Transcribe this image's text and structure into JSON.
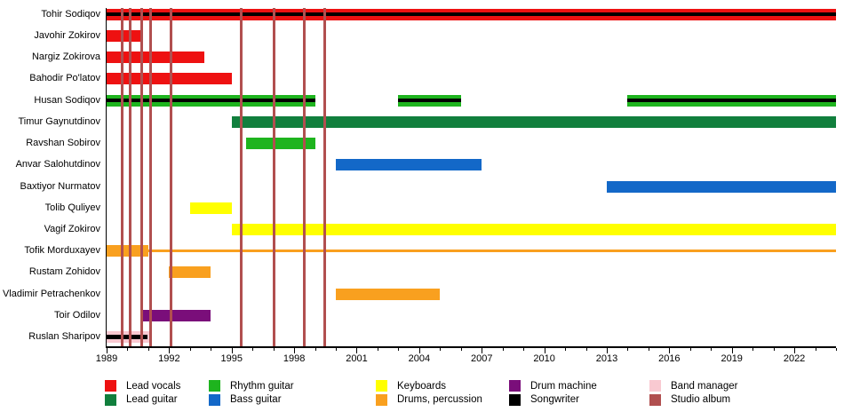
{
  "chart_data": {
    "type": "bar",
    "subtype": "band-members-timeline",
    "title": "",
    "xlabel": "",
    "ylabel": "",
    "axis": {
      "min": 1989,
      "max": 2024,
      "minor_tick_step": 1,
      "major_tick_step": 3,
      "major_tick_labels": [
        "1989",
        "1992",
        "1995",
        "1998",
        "2001",
        "2004",
        "2007",
        "2010",
        "2013",
        "2016",
        "2019",
        "2022"
      ],
      "grid": false
    },
    "colors": {
      "lead_vocals": "#ee1111",
      "lead_guitar": "#117f3d",
      "rhythm_guitar": "#1eb41e",
      "bass_guitar": "#1368c8",
      "keyboards": "#ffff00",
      "drums_percussion": "#f9a01f",
      "drum_machine": "#7a0e7a",
      "songwriter": "#000000",
      "band_manager": "#f9c9d1",
      "studio_album": "#b14f4f",
      "axis": "#000000"
    },
    "members": [
      {
        "name": "Tohir Sodiqov",
        "segments": [
          {
            "role": "lead_vocals",
            "start": 1989,
            "end": 2024,
            "songwriter_overlay": true
          }
        ]
      },
      {
        "name": "Javohir Zokirov",
        "segments": [
          {
            "role": "lead_vocals",
            "start": 1989,
            "end": 1990.7
          }
        ]
      },
      {
        "name": "Nargiz Zokirova",
        "segments": [
          {
            "role": "lead_vocals",
            "start": 1989,
            "end": 1993.7
          }
        ]
      },
      {
        "name": "Bahodir Po'latov",
        "segments": [
          {
            "role": "lead_vocals",
            "start": 1989,
            "end": 1995
          }
        ]
      },
      {
        "name": "Husan Sodiqov",
        "segments": [
          {
            "role": "rhythm_guitar",
            "start": 1989,
            "end": 1999,
            "songwriter_overlay": true
          },
          {
            "role": "rhythm_guitar",
            "start": 2003,
            "end": 2006,
            "songwriter_overlay": true
          },
          {
            "role": "rhythm_guitar",
            "start": 2014,
            "end": 2024,
            "songwriter_overlay": true
          }
        ]
      },
      {
        "name": "Timur Gaynutdinov",
        "segments": [
          {
            "role": "lead_guitar",
            "start": 1995,
            "end": 2024
          }
        ]
      },
      {
        "name": "Ravshan Sobirov",
        "segments": [
          {
            "role": "rhythm_guitar",
            "start": 1995.7,
            "end": 1999
          }
        ]
      },
      {
        "name": "Anvar Salohutdinov",
        "segments": [
          {
            "role": "bass_guitar",
            "start": 2000,
            "end": 2007
          }
        ]
      },
      {
        "name": "Baxtiyor Nurmatov",
        "segments": [
          {
            "role": "bass_guitar",
            "start": 2013,
            "end": 2024
          }
        ]
      },
      {
        "name": "Tolib Quliyev",
        "segments": [
          {
            "role": "keyboards",
            "start": 1993,
            "end": 1995
          }
        ]
      },
      {
        "name": "Vagif Zokirov",
        "segments": [
          {
            "role": "keyboards",
            "start": 1995,
            "end": 2024
          }
        ]
      },
      {
        "name": "Tofik Morduxayev",
        "segments": [
          {
            "role": "drums_percussion",
            "start": 1989,
            "end": 1991
          },
          {
            "role": "drums_percussion",
            "start": 1991,
            "end": 2024,
            "thin": true
          }
        ]
      },
      {
        "name": "Rustam Zohidov",
        "segments": [
          {
            "role": "drums_percussion",
            "start": 1992,
            "end": 1994
          }
        ]
      },
      {
        "name": "Vladimir Petrachenkov",
        "segments": [
          {
            "role": "drums_percussion",
            "start": 2000,
            "end": 2005
          }
        ]
      },
      {
        "name": "Toir Odilov",
        "segments": [
          {
            "role": "drum_machine",
            "start": 1990.6,
            "end": 1994
          }
        ]
      },
      {
        "name": "Ruslan Sharipov",
        "segments": [
          {
            "role": "band_manager",
            "start": 1989,
            "end": 1991.1,
            "songwriter_overlay": true,
            "overlay_end": 1990.95
          }
        ]
      }
    ],
    "albums": [
      1989.75,
      1990.15,
      1990.7,
      1991.1,
      1992.1,
      1995.45,
      1997.05,
      1998.5,
      1999.45
    ],
    "legend": [
      {
        "label": "Lead vocals",
        "color_key": "lead_vocals"
      },
      {
        "label": "Lead guitar",
        "color_key": "lead_guitar"
      },
      {
        "label": "Rhythm guitar",
        "color_key": "rhythm_guitar"
      },
      {
        "label": "Bass guitar",
        "color_key": "bass_guitar"
      },
      {
        "label": "Keyboards",
        "color_key": "keyboards"
      },
      {
        "label": "Drums, percussion",
        "color_key": "drums_percussion"
      },
      {
        "label": "Drum machine",
        "color_key": "drum_machine"
      },
      {
        "label": "Songwriter",
        "color_key": "songwriter"
      },
      {
        "label": "Band manager",
        "color_key": "band_manager"
      },
      {
        "label": "Studio album",
        "color_key": "studio_album"
      }
    ]
  }
}
